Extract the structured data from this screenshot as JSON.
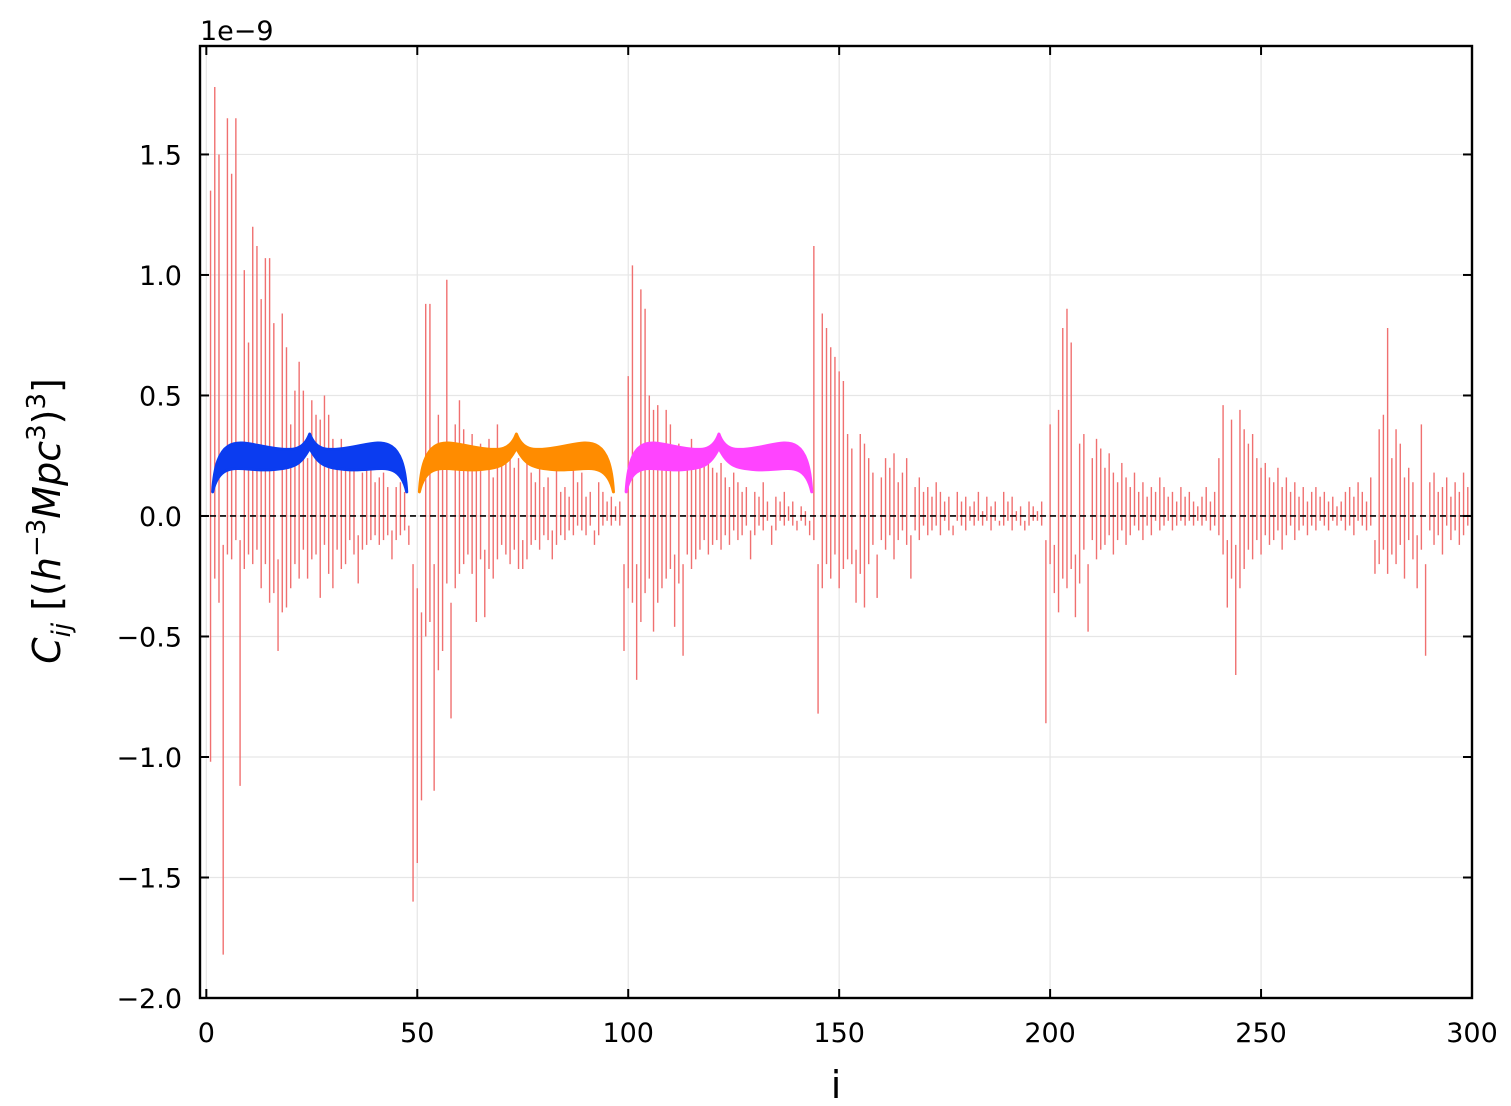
{
  "chart_data": {
    "type": "bar",
    "title": "",
    "xlabel": "i",
    "ylabel_parts": {
      "main": "C",
      "sub": "ij",
      "unit_open": " [(",
      "h": "h",
      "h_sup": "−3",
      "mpc": "Mpc",
      "mpc_sup": "3",
      "close_paren": ")",
      "outer_sup": "3",
      "unit_close": "]"
    },
    "y_offset_label": "1e−9",
    "y_scale": 1e-09,
    "xlim": [
      -1.5,
      300
    ],
    "ylim": [
      -2.0,
      1.95
    ],
    "xticks": [
      0,
      50,
      100,
      150,
      200,
      250,
      300
    ],
    "xtick_labels": [
      "0",
      "50",
      "100",
      "150",
      "200",
      "250",
      "300"
    ],
    "yticks": [
      -2.0,
      -1.5,
      -1.0,
      -0.5,
      0.0,
      0.5,
      1.0,
      1.5
    ],
    "ytick_labels": [
      "−2.0",
      "−1.5",
      "−1.0",
      "−0.5",
      "0.0",
      "0.5",
      "1.0",
      "1.5"
    ],
    "grid": true,
    "zero_line": {
      "y": 0,
      "style": "dashed",
      "color": "#000000"
    },
    "bar_color": "#f07070",
    "values": [
      1.35,
      1.78,
      1.5,
      -1.82,
      1.65,
      1.42,
      1.65,
      -1.12,
      1.02,
      0.72,
      1.2,
      1.12,
      0.9,
      1.07,
      1.07,
      0.8,
      -0.56,
      0.84,
      0.7,
      0.38,
      0.52,
      0.64,
      0.52,
      0.24,
      0.48,
      0.42,
      0.4,
      0.5,
      0.42,
      0.32,
      0.28,
      0.32,
      0.26,
      0.2,
      0.22,
      -0.28,
      0.18,
      0.2,
      0.22,
      0.14,
      0.16,
      0.18,
      0.12,
      -0.18,
      0.12,
      0.14,
      0.1,
      -0.12,
      -1.6,
      -1.44,
      -1.18,
      0.88,
      0.88,
      -1.14,
      0.42,
      0.3,
      0.98,
      -0.84,
      0.38,
      0.48,
      0.36,
      0.2,
      0.34,
      0.26,
      0.3,
      -0.42,
      0.32,
      0.16,
      0.38,
      0.22,
      0.26,
      0.3,
      0.2,
      0.24,
      -0.22,
      0.22,
      0.18,
      0.14,
      0.2,
      0.12,
      0.16,
      -0.18,
      0.2,
      0.1,
      0.12,
      0.08,
      0.22,
      0.14,
      0.18,
      0.08,
      0.1,
      -0.12,
      0.14,
      0.1,
      0.06,
      0.08,
      0.04,
      0.06,
      -0.56,
      0.58,
      1.04,
      -0.68,
      0.94,
      0.86,
      0.5,
      0.44,
      0.46,
      0.3,
      0.44,
      0.38,
      -0.46,
      0.3,
      -0.58,
      0.26,
      0.32,
      0.28,
      0.22,
      0.28,
      0.24,
      0.2,
      0.18,
      0.22,
      0.16,
      0.12,
      0.18,
      0.14,
      0.1,
      0.12,
      -0.18,
      0.1,
      0.08,
      0.14,
      0.06,
      -0.12,
      0.08,
      0.06,
      0.1,
      0.04,
      0.06,
      -0.06,
      0.04,
      0.02,
      -0.08,
      1.12,
      -0.82,
      0.84,
      0.78,
      0.7,
      0.66,
      0.6,
      0.56,
      0.34,
      0.28,
      -0.36,
      0.34,
      0.3,
      0.24,
      0.18,
      -0.34,
      0.16,
      0.24,
      0.2,
      0.26,
      0.14,
      0.18,
      0.24,
      -0.26,
      0.12,
      0.16,
      0.1,
      0.12,
      0.08,
      0.14,
      0.1,
      0.06,
      0.08,
      -0.08,
      0.1,
      0.06,
      0.08,
      0.04,
      0.06,
      0.1,
      0.02,
      0.08,
      0.04,
      0.06,
      -0.04,
      0.1,
      0.06,
      0.08,
      0.02,
      0.04,
      -0.06,
      0.06,
      0.04,
      0.02,
      0.06,
      -0.86,
      0.38,
      -0.32,
      0.44,
      0.78,
      0.86,
      0.72,
      -0.42,
      0.3,
      0.34,
      -0.48,
      0.24,
      0.32,
      0.28,
      0.2,
      0.26,
      0.18,
      0.14,
      0.22,
      0.16,
      0.12,
      0.18,
      0.1,
      0.14,
      0.08,
      0.12,
      0.1,
      0.16,
      0.12,
      0.08,
      0.1,
      0.06,
      0.12,
      0.08,
      0.1,
      0.06,
      0.04,
      0.08,
      0.12,
      0.06,
      0.1,
      0.24,
      0.46,
      -0.38,
      0.4,
      -0.66,
      0.44,
      0.36,
      0.3,
      0.34,
      0.24,
      0.2,
      0.22,
      0.16,
      0.14,
      0.2,
      0.12,
      0.16,
      0.1,
      0.14,
      0.08,
      0.12,
      0.06,
      0.1,
      0.12,
      0.08,
      0.1,
      0.06,
      0.08,
      0.04,
      0.06,
      0.1,
      0.12,
      0.08,
      0.14,
      0.1,
      0.06,
      0.16,
      -0.24,
      0.36,
      0.42,
      0.78,
      0.24,
      0.36,
      0.3,
      0.16,
      0.2,
      0.14,
      -0.3,
      0.38,
      -0.58,
      0.14,
      0.18,
      0.1,
      0.12,
      0.16,
      0.08,
      0.14,
      0.1,
      0.18,
      0.12,
      0.2
    ],
    "lower_values": [
      -1.02,
      -0.26,
      -0.36,
      -0.12,
      -0.16,
      -0.18,
      -0.1,
      -0.1,
      -0.22,
      -0.16,
      -0.2,
      -0.14,
      -0.3,
      -0.2,
      -0.36,
      -0.32,
      -0.18,
      -0.4,
      -0.38,
      -0.3,
      -0.2,
      -0.26,
      -0.14,
      -0.26,
      -0.18,
      -0.16,
      -0.34,
      -0.12,
      -0.24,
      -0.3,
      -0.14,
      -0.22,
      -0.2,
      -0.1,
      -0.16,
      -0.08,
      -0.14,
      -0.12,
      -0.1,
      -0.08,
      -0.12,
      -0.1,
      -0.08,
      -0.06,
      -0.1,
      -0.08,
      -0.06,
      -0.04,
      -0.2,
      -0.3,
      -0.4,
      -0.5,
      -0.44,
      -0.2,
      -0.64,
      -0.56,
      -0.28,
      -0.36,
      -0.3,
      -0.24,
      -0.2,
      -0.16,
      -0.24,
      -0.44,
      -0.18,
      -0.14,
      -0.22,
      -0.26,
      -0.18,
      -0.12,
      -0.16,
      -0.2,
      -0.14,
      -0.22,
      -0.1,
      -0.18,
      -0.12,
      -0.1,
      -0.14,
      -0.08,
      -0.1,
      -0.06,
      -0.12,
      -0.08,
      -0.1,
      -0.06,
      -0.08,
      -0.04,
      -0.06,
      -0.08,
      -0.04,
      -0.06,
      -0.08,
      -0.04,
      -0.02,
      -0.04,
      -0.02,
      -0.04,
      -0.2,
      -0.3,
      -0.36,
      -0.2,
      -0.44,
      -0.32,
      -0.26,
      -0.48,
      -0.36,
      -0.3,
      -0.26,
      -0.22,
      -0.16,
      -0.28,
      -0.2,
      -0.16,
      -0.22,
      -0.18,
      -0.14,
      -0.1,
      -0.16,
      -0.12,
      -0.1,
      -0.14,
      -0.08,
      -0.12,
      -0.06,
      -0.1,
      -0.08,
      -0.04,
      -0.06,
      -0.08,
      -0.04,
      -0.06,
      -0.02,
      -0.04,
      -0.06,
      -0.02,
      -0.04,
      -0.02,
      -0.04,
      -0.02,
      -0.02,
      -0.04,
      -0.02,
      -0.1,
      -0.2,
      -0.3,
      -0.2,
      -0.26,
      -0.16,
      -0.3,
      -0.22,
      -0.18,
      -0.2,
      -0.14,
      -0.24,
      -0.38,
      -0.2,
      -0.12,
      -0.16,
      -0.1,
      -0.14,
      -0.08,
      -0.18,
      -0.1,
      -0.06,
      -0.12,
      -0.08,
      -0.06,
      -0.1,
      -0.04,
      -0.08,
      -0.06,
      -0.04,
      -0.08,
      -0.02,
      -0.06,
      -0.04,
      -0.02,
      -0.04,
      -0.06,
      -0.02,
      -0.04,
      -0.02,
      -0.04,
      -0.02,
      -0.06,
      -0.02,
      -0.02,
      -0.04,
      -0.02,
      -0.06,
      -0.02,
      -0.04,
      -0.02,
      -0.04,
      -0.02,
      -0.02,
      -0.04,
      -0.1,
      -0.2,
      -0.12,
      -0.4,
      -0.26,
      -0.3,
      -0.22,
      -0.16,
      -0.28,
      -0.14,
      -0.2,
      -0.1,
      -0.18,
      -0.14,
      -0.12,
      -0.08,
      -0.16,
      -0.1,
      -0.06,
      -0.12,
      -0.08,
      -0.04,
      -0.06,
      -0.1,
      -0.04,
      -0.08,
      -0.02,
      -0.06,
      -0.04,
      -0.02,
      -0.06,
      -0.04,
      -0.02,
      -0.04,
      -0.02,
      -0.04,
      -0.02,
      -0.04,
      -0.02,
      -0.06,
      -0.04,
      -0.08,
      -0.16,
      -0.1,
      -0.26,
      -0.12,
      -0.3,
      -0.22,
      -0.14,
      -0.18,
      -0.1,
      -0.16,
      -0.08,
      -0.12,
      -0.1,
      -0.06,
      -0.14,
      -0.08,
      -0.04,
      -0.1,
      -0.06,
      -0.04,
      -0.08,
      -0.04,
      -0.06,
      -0.02,
      -0.04,
      -0.06,
      -0.02,
      -0.04,
      -0.02,
      -0.06,
      -0.04,
      -0.08,
      -0.02,
      -0.04,
      -0.06,
      -0.04,
      -0.1,
      -0.2,
      -0.14,
      -0.24,
      -0.16,
      -0.2,
      -0.12,
      -0.26,
      -0.1,
      -0.18,
      -0.08,
      -0.14,
      -0.2,
      -0.06,
      -0.12,
      -0.08,
      -0.16,
      -0.04,
      -0.1,
      -0.06,
      -0.12,
      -0.08,
      -0.04,
      -0.06
    ],
    "braces": [
      {
        "x_start": 1.5,
        "x_end": 47.5,
        "color": "#0b3cf0"
      },
      {
        "x_start": 50.5,
        "x_end": 96.5,
        "color": "#ff8c00"
      },
      {
        "x_start": 99.5,
        "x_end": 143.5,
        "color": "#ff44ff"
      }
    ]
  }
}
